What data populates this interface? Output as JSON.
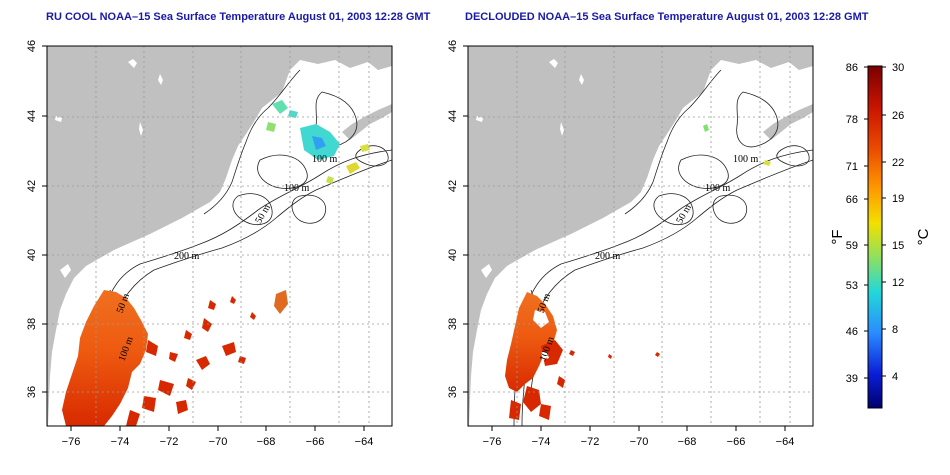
{
  "maps": [
    {
      "title": "RU COOL NOAA–15 Sea Surface Temperature August 01, 2003 12:28 GMT"
    },
    {
      "title": "DECLOUDED NOAA–15 Sea Surface Temperature August 01, 2003 12:28 GMT"
    }
  ],
  "axes": {
    "lon_ticks": [
      "−76",
      "−74",
      "−72",
      "−70",
      "−68",
      "−66",
      "−64"
    ],
    "lat_ticks": [
      "36",
      "38",
      "40",
      "42",
      "44",
      "46"
    ]
  },
  "contour_labels": [
    "100 m",
    "100 m",
    "50 m",
    "200 m",
    "50 m",
    "100 m"
  ],
  "colorbar": {
    "fahrenheit_ticks": [
      "86",
      "78",
      "71",
      "66",
      "59",
      "53",
      "46",
      "39"
    ],
    "celsius_ticks": [
      "30",
      "26",
      "22",
      "19",
      "15",
      "12",
      "8",
      "4"
    ],
    "fahrenheit_unit": "°F",
    "celsius_unit": "°C",
    "colors": [
      "#8b0000",
      "#d42000",
      "#f05a00",
      "#ffa000",
      "#e8e000",
      "#80e060",
      "#20d0d0",
      "#2080ff",
      "#0020d0",
      "#000088"
    ]
  }
}
